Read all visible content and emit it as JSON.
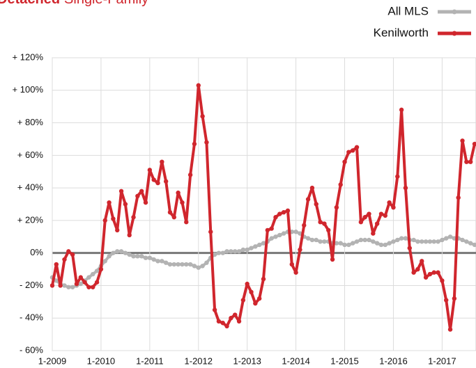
{
  "chart_data": {
    "type": "line",
    "title_bold": "Detached",
    "title": "Single-Family",
    "categories": [
      "1-2009",
      null,
      null,
      null,
      null,
      null,
      null,
      null,
      null,
      null,
      null,
      null,
      "1-2010",
      null,
      null,
      null,
      null,
      null,
      null,
      null,
      null,
      null,
      null,
      null,
      "1-2011",
      null,
      null,
      null,
      null,
      null,
      null,
      null,
      null,
      null,
      null,
      null,
      "1-2012",
      null,
      null,
      null,
      null,
      null,
      null,
      null,
      null,
      null,
      null,
      null,
      "1-2013",
      null,
      null,
      null,
      null,
      null,
      null,
      null,
      null,
      null,
      null,
      null,
      "1-2014",
      null,
      null,
      null,
      null,
      null,
      null,
      null,
      null,
      null,
      null,
      null,
      "1-2015",
      null,
      null,
      null,
      null,
      null,
      null,
      null,
      null,
      null,
      null,
      null,
      "1-2016",
      null,
      null,
      null,
      null,
      null,
      null,
      null,
      null,
      null,
      null,
      null,
      "1-2017",
      null,
      null,
      null,
      null,
      null,
      null,
      null,
      null
    ],
    "series": [
      {
        "name": "All MLS",
        "color": "#b3b3b3",
        "values": [
          -15,
          -17,
          -19,
          -20,
          -21,
          -21,
          -20,
          -19,
          -17,
          -15,
          -13,
          -11,
          -8,
          -5,
          -2,
          0,
          1,
          1,
          0,
          -1,
          -2,
          -2,
          -2,
          -3,
          -3,
          -4,
          -5,
          -5,
          -6,
          -7,
          -7,
          -7,
          -7,
          -7,
          -7,
          -8,
          -9,
          -8,
          -6,
          -3,
          -1,
          0,
          0,
          1,
          1,
          1,
          1,
          2,
          2,
          3,
          4,
          5,
          6,
          7,
          9,
          10,
          11,
          12,
          13,
          13,
          13,
          12,
          10,
          9,
          8,
          8,
          7,
          7,
          7,
          6,
          6,
          6,
          5,
          5,
          6,
          7,
          8,
          8,
          8,
          7,
          6,
          5,
          5,
          6,
          7,
          8,
          9,
          9,
          8,
          8,
          7,
          7,
          7,
          7,
          7,
          7,
          8,
          9,
          10,
          9,
          9,
          8,
          7,
          6,
          5
        ]
      },
      {
        "name": "Kenilworth",
        "color": "#d0262d",
        "values": [
          -20,
          -7,
          -20,
          -4,
          1,
          -1,
          -19,
          -15,
          -18,
          -21,
          -21,
          -18,
          -10,
          20,
          31,
          21,
          14,
          38,
          30,
          11,
          22,
          35,
          38,
          31,
          51,
          45,
          43,
          56,
          44,
          25,
          22,
          37,
          31,
          19,
          48,
          67,
          103,
          84,
          68,
          13,
          -35,
          -42,
          -43,
          -45,
          -40,
          -38,
          -42,
          -29,
          -19,
          -24,
          -31,
          -28,
          -16,
          14,
          15,
          22,
          24,
          25,
          26,
          -7,
          -12,
          2,
          17,
          33,
          40,
          30,
          19,
          18,
          14,
          -4,
          28,
          42,
          56,
          62,
          63,
          65,
          19,
          22,
          24,
          12,
          18,
          24,
          23,
          31,
          28,
          47,
          88,
          40,
          3,
          -12,
          -10,
          -5,
          -15,
          -13,
          -12,
          -12,
          -17,
          -29,
          -47,
          -28,
          34,
          69,
          56,
          56,
          67
        ]
      }
    ],
    "ylim": [
      -60,
      120
    ],
    "yticks": [
      {
        "value": -60,
        "label": "- 60%"
      },
      {
        "value": -40,
        "label": "- 40%"
      },
      {
        "value": -20,
        "label": "- 20%"
      },
      {
        "value": 0,
        "label": "0%"
      },
      {
        "value": 20,
        "label": "+ 20%"
      },
      {
        "value": 40,
        "label": "+ 40%"
      },
      {
        "value": 60,
        "label": "+ 60%"
      },
      {
        "value": 80,
        "label": "+ 80%"
      },
      {
        "value": 100,
        "label": "+ 100%"
      },
      {
        "value": 120,
        "label": "+ 120%"
      }
    ],
    "grid": true
  }
}
